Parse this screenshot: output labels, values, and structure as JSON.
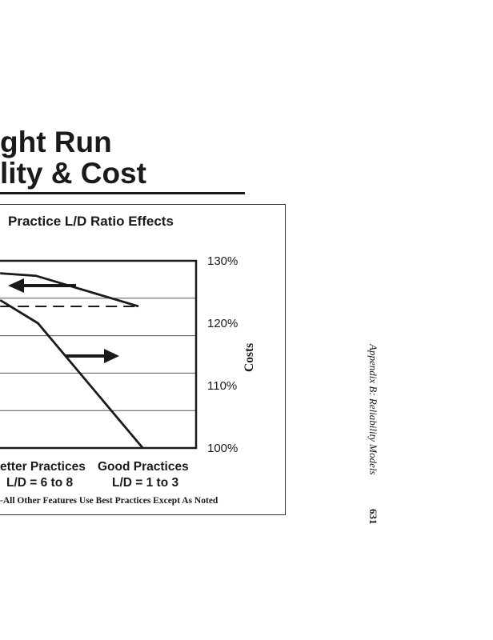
{
  "page": {
    "title_line1": "ght Run",
    "title_line2": "lity & Cost",
    "running_head": "Appendix B: Reliability Models",
    "page_number": "631"
  },
  "chart_data": {
    "type": "line",
    "title": "Practice L/D Ratio Effects",
    "ylabel_right": "Costs",
    "yticks_right": [
      "130%",
      "120%",
      "110%",
      "100%"
    ],
    "ylim_right": [
      100,
      130
    ],
    "categories": [
      {
        "label": "etter Practices",
        "sub": "L/D = 6 to 8"
      },
      {
        "label": "Good Practices",
        "sub": "L/D = 1 to 3"
      }
    ],
    "grid": true,
    "footnote": "-All Other Features Use Best Practices Except As Noted",
    "series": [
      {
        "style": "solid",
        "points": [
          [
            0.62,
            128.0
          ],
          [
            0.96,
            127.6
          ],
          [
            1.94,
            122.7
          ]
        ],
        "arrow": "left"
      },
      {
        "style": "dashed",
        "points": [
          [
            0.62,
            122.7
          ],
          [
            1.94,
            122.7
          ]
        ]
      },
      {
        "style": "solid",
        "points": [
          [
            0.62,
            123.7
          ],
          [
            0.98,
            120.0
          ],
          [
            1.98,
            100.0
          ]
        ],
        "arrow": "right"
      }
    ]
  }
}
